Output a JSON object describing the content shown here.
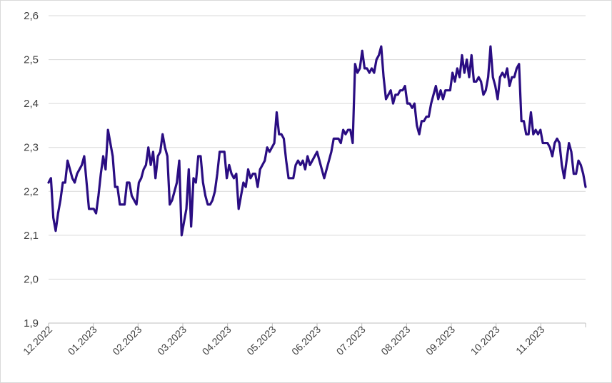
{
  "chart_data": {
    "type": "line",
    "title": "",
    "xlabel": "",
    "ylabel": "",
    "ylim": [
      1.9,
      2.6
    ],
    "yticks": [
      "1,9",
      "2,0",
      "2,1",
      "2,2",
      "2,3",
      "2,4",
      "2,5",
      "2,6"
    ],
    "xticks": [
      "12.2022",
      "01.2023",
      "02.2023",
      "03.2023",
      "04.2023",
      "05.2023",
      "06.2023",
      "07.2023",
      "08.2023",
      "09.2023",
      "10.2023",
      "11.2023"
    ],
    "grid": "horizontal",
    "legend": "none",
    "line_color": "#2a0d82",
    "series": [
      {
        "values": [
          2.22,
          2.23,
          2.14,
          2.11,
          2.15,
          2.18,
          2.22,
          2.22,
          2.27,
          2.25,
          2.23,
          2.22,
          2.24,
          2.25,
          2.26,
          2.28,
          2.22,
          2.16,
          2.16,
          2.16,
          2.15,
          2.19,
          2.24,
          2.28,
          2.25,
          2.34,
          2.31,
          2.28,
          2.21,
          2.21,
          2.17,
          2.17,
          2.17,
          2.22,
          2.22,
          2.19,
          2.18,
          2.17,
          2.22,
          2.23,
          2.25,
          2.26,
          2.3,
          2.26,
          2.29,
          2.23,
          2.28,
          2.29,
          2.33,
          2.3,
          2.28,
          2.17,
          2.18,
          2.2,
          2.22,
          2.27,
          2.1,
          2.13,
          2.16,
          2.25,
          2.12,
          2.23,
          2.22,
          2.28,
          2.28,
          2.22,
          2.19,
          2.17,
          2.17,
          2.18,
          2.2,
          2.24,
          2.29,
          2.29,
          2.29,
          2.23,
          2.26,
          2.24,
          2.23,
          2.24,
          2.16,
          2.19,
          2.22,
          2.21,
          2.25,
          2.23,
          2.24,
          2.24,
          2.21,
          2.25,
          2.26,
          2.27,
          2.3,
          2.29,
          2.3,
          2.31,
          2.38,
          2.33,
          2.33,
          2.32,
          2.27,
          2.23,
          2.23,
          2.23,
          2.26,
          2.27,
          2.26,
          2.27,
          2.25,
          2.28,
          2.26,
          2.27,
          2.28,
          2.29,
          2.27,
          2.25,
          2.23,
          2.25,
          2.27,
          2.29,
          2.32,
          2.32,
          2.32,
          2.31,
          2.34,
          2.33,
          2.34,
          2.34,
          2.31,
          2.49,
          2.47,
          2.48,
          2.52,
          2.48,
          2.48,
          2.47,
          2.48,
          2.47,
          2.5,
          2.51,
          2.53,
          2.46,
          2.41,
          2.42,
          2.43,
          2.4,
          2.42,
          2.42,
          2.43,
          2.43,
          2.44,
          2.4,
          2.4,
          2.39,
          2.4,
          2.35,
          2.33,
          2.36,
          2.36,
          2.37,
          2.37,
          2.4,
          2.42,
          2.44,
          2.41,
          2.43,
          2.41,
          2.43,
          2.43,
          2.43,
          2.47,
          2.45,
          2.48,
          2.46,
          2.51,
          2.47,
          2.5,
          2.46,
          2.51,
          2.45,
          2.45,
          2.46,
          2.45,
          2.42,
          2.43,
          2.46,
          2.53,
          2.46,
          2.44,
          2.41,
          2.46,
          2.47,
          2.46,
          2.48,
          2.44,
          2.46,
          2.46,
          2.48,
          2.49,
          2.36,
          2.36,
          2.33,
          2.33,
          2.38,
          2.33,
          2.34,
          2.33,
          2.34,
          2.31,
          2.31,
          2.31,
          2.3,
          2.28,
          2.31,
          2.32,
          2.31,
          2.26,
          2.23,
          2.27,
          2.31,
          2.29,
          2.24,
          2.24,
          2.27,
          2.26,
          2.24,
          2.21
        ]
      }
    ]
  }
}
